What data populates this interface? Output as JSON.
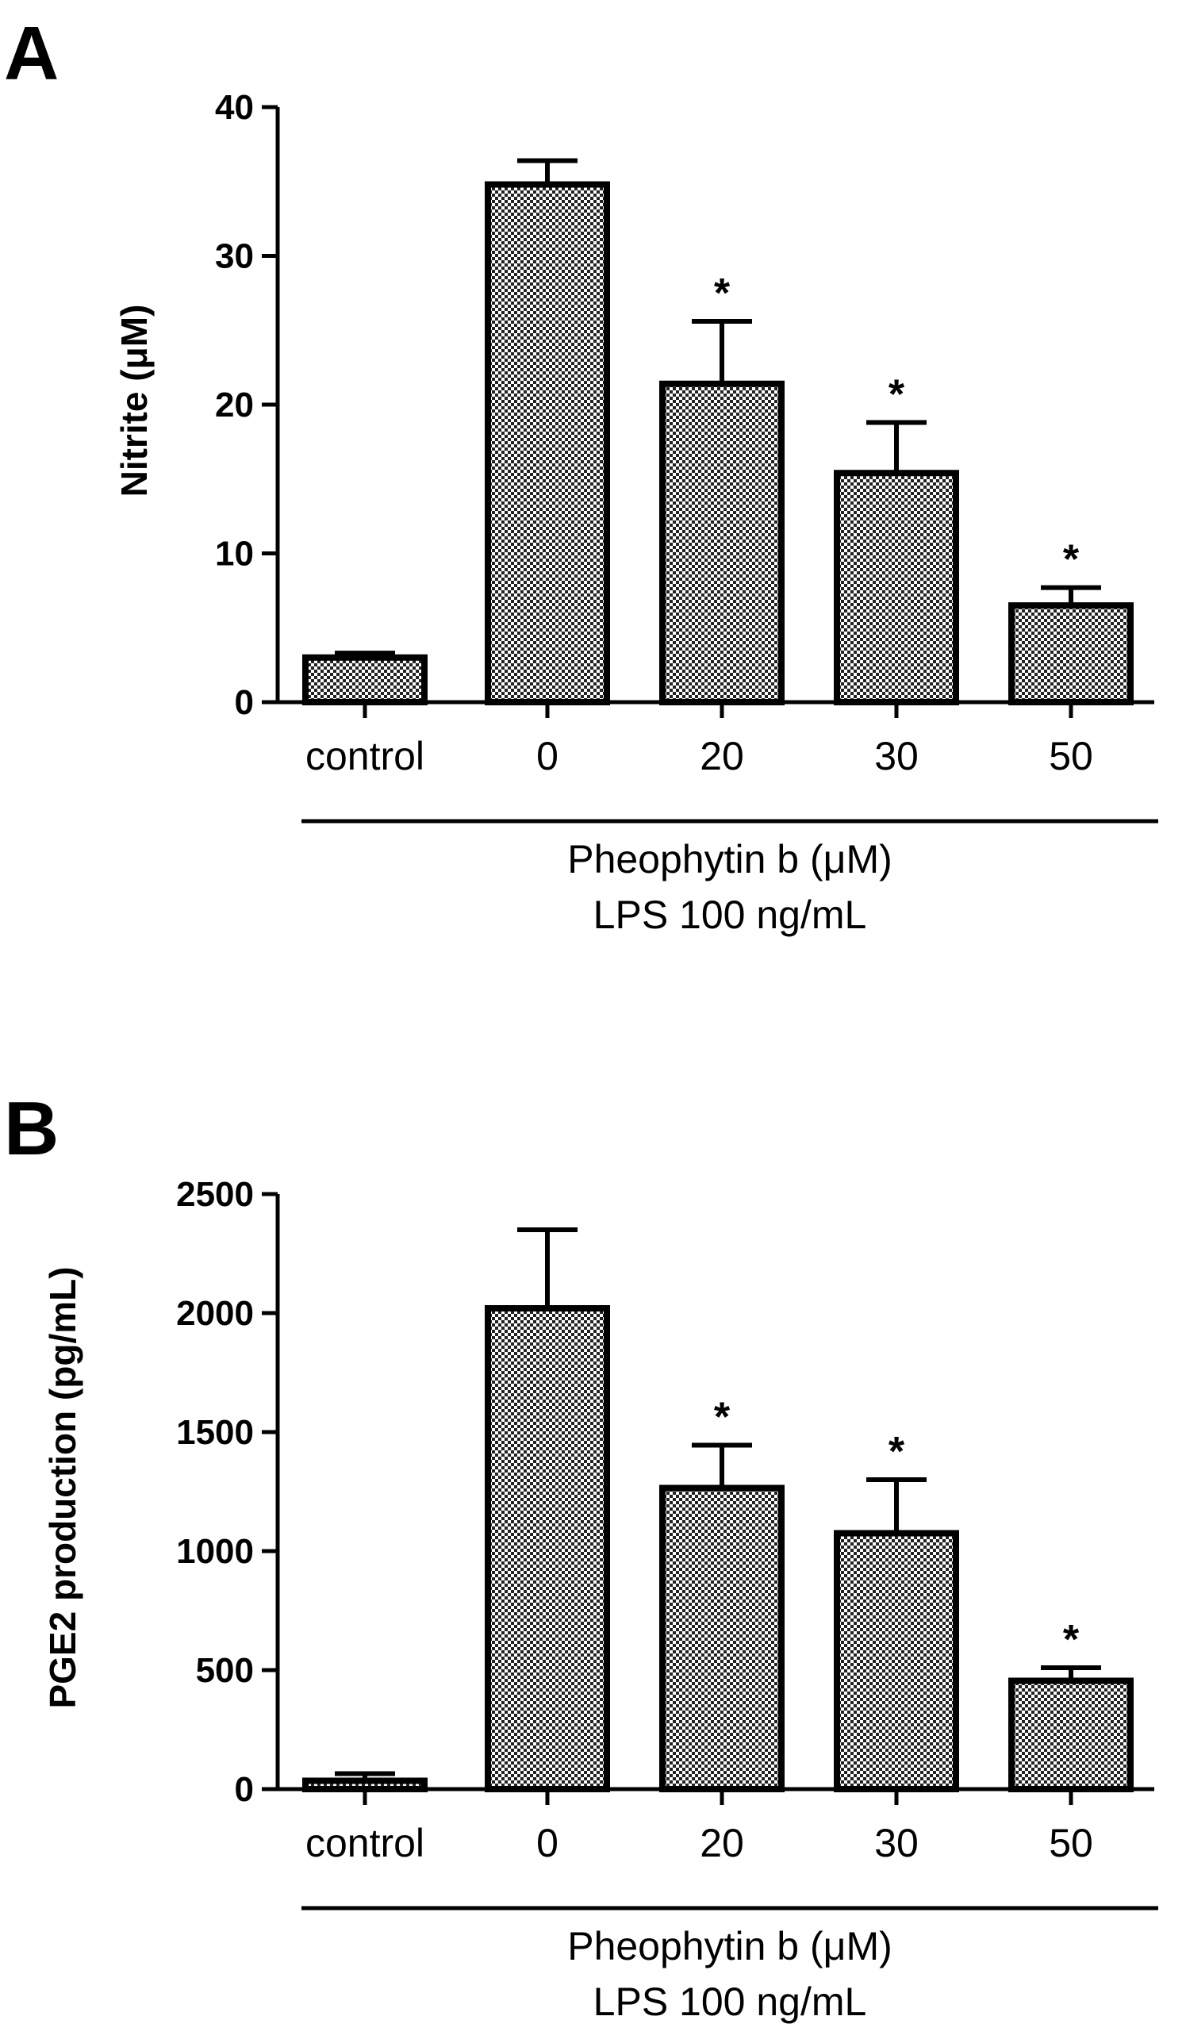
{
  "chart_data": [
    {
      "panel_label": "A",
      "type": "bar",
      "categories": [
        "control",
        "0",
        "20",
        "30",
        "50"
      ],
      "values": [
        3.0,
        34.8,
        21.4,
        15.4,
        6.5
      ],
      "errors": [
        0.3,
        1.6,
        4.2,
        3.4,
        1.2
      ],
      "significance": [
        "",
        "",
        "*",
        "*",
        "*"
      ],
      "ylabel": "Nitrite (μM)",
      "ylim": [
        0,
        40
      ],
      "yticks": [
        0,
        10,
        20,
        30,
        40
      ],
      "group_label_1": "Pheophytin b (μM)",
      "group_label_2": "LPS 100 ng/mL",
      "pattern": "checkered"
    },
    {
      "panel_label": "B",
      "type": "bar",
      "categories": [
        "control",
        "0",
        "20",
        "30",
        "50"
      ],
      "values": [
        35,
        2020,
        1265,
        1075,
        455
      ],
      "errors": [
        30,
        330,
        180,
        225,
        55
      ],
      "significance": [
        "",
        "",
        "*",
        "*",
        "*"
      ],
      "ylabel": "PGE2 production (pg/mL)",
      "ylim": [
        0,
        2500
      ],
      "yticks": [
        0,
        500,
        1000,
        1500,
        2000,
        2500
      ],
      "group_label_1": "Pheophytin b (μM)",
      "group_label_2": "LPS 100 ng/mL",
      "pattern": "checkered"
    }
  ]
}
